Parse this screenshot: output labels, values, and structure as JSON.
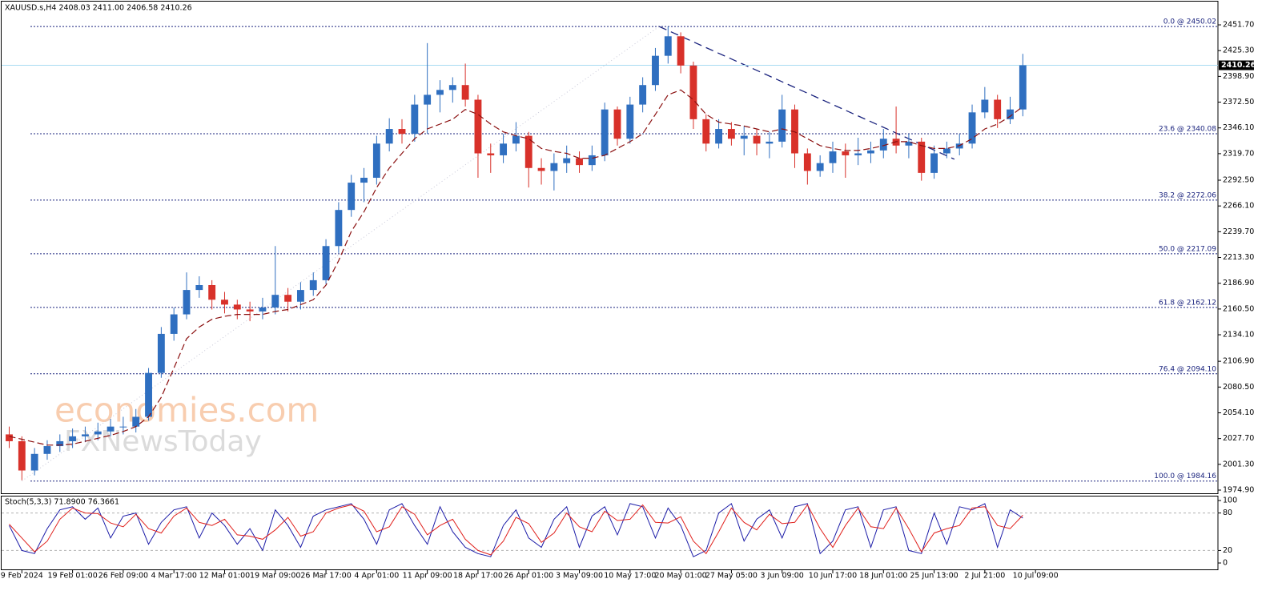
{
  "header": "XAUUSD.s,H4  2408.03 2411.00 2406.58 2410.26",
  "watermark": {
    "brand": "economies.com",
    "sub": "FXNewsToday"
  },
  "chart_data": [
    {
      "type": "candlestick",
      "xlim": [
        -0.6,
        95.4
      ],
      "xticks": [
        {
          "value": 1,
          "label": "9 Feb 2024"
        },
        {
          "value": 5,
          "label": "19 Feb 01:00"
        },
        {
          "value": 9,
          "label": "26 Feb 09:00"
        },
        {
          "value": 13,
          "label": "4 Mar 17:00"
        },
        {
          "value": 17,
          "label": "12 Mar 01:00"
        },
        {
          "value": 21,
          "label": "19 Mar 09:00"
        },
        {
          "value": 25,
          "label": "26 Mar 17:00"
        },
        {
          "value": 29,
          "label": "4 Apr 01:00"
        },
        {
          "value": 33,
          "label": "11 Apr 09:00"
        },
        {
          "value": 37,
          "label": "18 Apr 17:00"
        },
        {
          "value": 41,
          "label": "26 Apr 01:00"
        },
        {
          "value": 45,
          "label": "3 May 09:00"
        },
        {
          "value": 49,
          "label": "10 May 17:00"
        },
        {
          "value": 53,
          "label": "20 May 01:00"
        },
        {
          "value": 57,
          "label": "27 May 05:00"
        },
        {
          "value": 61,
          "label": "3 Jun 09:00"
        },
        {
          "value": 65,
          "label": "10 Jun 17:00"
        },
        {
          "value": 69,
          "label": "18 Jun 01:00"
        },
        {
          "value": 73,
          "label": "25 Jun 13:00"
        },
        {
          "value": 77,
          "label": "2 Jul 21:00"
        },
        {
          "value": 81,
          "label": "10 Jul 09:00"
        }
      ],
      "ylim": [
        1970.8,
        2462.4
      ],
      "yticks": [
        {
          "value": 2451.7,
          "label": "2451.70"
        },
        {
          "value": 2425.3,
          "label": "2425.30"
        },
        {
          "value": 2398.9,
          "label": "2398.90"
        },
        {
          "value": 2372.5,
          "label": "2372.50"
        },
        {
          "value": 2346.1,
          "label": "2346.10"
        },
        {
          "value": 2319.7,
          "label": "2319.70"
        },
        {
          "value": 2292.5,
          "label": "2292.50"
        },
        {
          "value": 2266.1,
          "label": "2266.10"
        },
        {
          "value": 2239.7,
          "label": "2239.70"
        },
        {
          "value": 2213.3,
          "label": "2213.30"
        },
        {
          "value": 2186.9,
          "label": "2186.90"
        },
        {
          "value": 2160.5,
          "label": "2160.50"
        },
        {
          "value": 2134.1,
          "label": "2134.10"
        },
        {
          "value": 2106.9,
          "label": "2106.90"
        },
        {
          "value": 2080.5,
          "label": "2080.50"
        },
        {
          "value": 2054.1,
          "label": "2054.10"
        },
        {
          "value": 2027.7,
          "label": "2027.70"
        },
        {
          "value": 2001.3,
          "label": "2001.30"
        },
        {
          "value": 1974.9,
          "label": "1974.90"
        }
      ],
      "open": [
        2032,
        2025,
        1995,
        2012,
        2020,
        2025,
        2030,
        2032,
        2035,
        2040,
        2040,
        2050,
        2095,
        2135,
        2155,
        2180,
        2185,
        2170,
        2165,
        2160,
        2158,
        2162,
        2175,
        2168,
        2180,
        2190,
        2225,
        2262,
        2290,
        2295,
        2330,
        2345,
        2340,
        2370,
        2380,
        2385,
        2390,
        2375,
        2320,
        2318,
        2330,
        2338,
        2305,
        2302,
        2310,
        2315,
        2308,
        2318,
        2365,
        2335,
        2370,
        2390,
        2420,
        2440,
        2410,
        2355,
        2330,
        2345,
        2335,
        2338,
        2330,
        2332,
        2365,
        2320,
        2302,
        2310,
        2322,
        2318,
        2320,
        2323,
        2335,
        2328,
        2332,
        2300,
        2320,
        2325,
        2330,
        2362,
        2375,
        2355,
        2365
      ],
      "high": [
        2040,
        2030,
        2018,
        2026,
        2032,
        2038,
        2040,
        2044,
        2048,
        2050,
        2058,
        2100,
        2142,
        2162,
        2198,
        2194,
        2190,
        2178,
        2170,
        2168,
        2172,
        2225,
        2182,
        2188,
        2198,
        2232,
        2270,
        2298,
        2305,
        2338,
        2356,
        2355,
        2380,
        2433,
        2395,
        2398,
        2412,
        2380,
        2330,
        2340,
        2352,
        2342,
        2315,
        2320,
        2328,
        2322,
        2328,
        2372,
        2368,
        2378,
        2398,
        2428,
        2450,
        2444,
        2414,
        2360,
        2355,
        2352,
        2348,
        2345,
        2342,
        2380,
        2370,
        2325,
        2318,
        2332,
        2330,
        2336,
        2332,
        2345,
        2368,
        2340,
        2336,
        2328,
        2332,
        2340,
        2370,
        2388,
        2380,
        2378,
        2422
      ],
      "low": [
        2018,
        1985,
        1990,
        2006,
        2014,
        2018,
        2024,
        2026,
        2030,
        2032,
        2034,
        2046,
        2090,
        2128,
        2150,
        2172,
        2160,
        2156,
        2150,
        2148,
        2150,
        2155,
        2158,
        2160,
        2174,
        2186,
        2218,
        2255,
        2270,
        2288,
        2322,
        2330,
        2332,
        2340,
        2362,
        2372,
        2368,
        2295,
        2300,
        2310,
        2322,
        2285,
        2288,
        2282,
        2300,
        2300,
        2302,
        2312,
        2328,
        2330,
        2362,
        2384,
        2412,
        2402,
        2345,
        2322,
        2325,
        2328,
        2318,
        2318,
        2315,
        2326,
        2305,
        2288,
        2296,
        2300,
        2295,
        2308,
        2310,
        2315,
        2320,
        2315,
        2292,
        2294,
        2315,
        2318,
        2325,
        2356,
        2346,
        2350,
        2358
      ],
      "close": [
        2025,
        1995,
        2012,
        2020,
        2025,
        2030,
        2032,
        2035,
        2040,
        2040,
        2050,
        2095,
        2135,
        2155,
        2180,
        2185,
        2170,
        2165,
        2160,
        2158,
        2162,
        2175,
        2168,
        2180,
        2190,
        2225,
        2262,
        2290,
        2295,
        2330,
        2345,
        2340,
        2370,
        2380,
        2385,
        2390,
        2375,
        2320,
        2318,
        2330,
        2338,
        2305,
        2302,
        2310,
        2315,
        2308,
        2318,
        2365,
        2335,
        2370,
        2390,
        2420,
        2440,
        2410,
        2355,
        2330,
        2345,
        2335,
        2338,
        2330,
        2332,
        2365,
        2320,
        2302,
        2310,
        2322,
        2318,
        2320,
        2323,
        2335,
        2328,
        2332,
        2300,
        2320,
        2325,
        2330,
        2362,
        2375,
        2355,
        2365,
        2410.26
      ],
      "up_color": "#2f6fc0",
      "down_color": "#d8312a",
      "ma": {
        "color": "#8b1010",
        "values": [
          2030,
          2027,
          2024,
          2021,
          2021,
          2022,
          2025,
          2028,
          2031,
          2035,
          2040,
          2050,
          2070,
          2100,
          2130,
          2142,
          2150,
          2153,
          2155,
          2155,
          2155,
          2158,
          2160,
          2165,
          2170,
          2185,
          2210,
          2240,
          2260,
          2285,
          2305,
          2320,
          2335,
          2345,
          2350,
          2355,
          2365,
          2360,
          2350,
          2342,
          2338,
          2335,
          2325,
          2322,
          2320,
          2315,
          2315,
          2318,
          2325,
          2332,
          2340,
          2360,
          2380,
          2385,
          2375,
          2360,
          2352,
          2350,
          2348,
          2345,
          2342,
          2345,
          2342,
          2335,
          2328,
          2325,
          2323,
          2323,
          2325,
          2328,
          2332,
          2332,
          2328,
          2325,
          2325,
          2328,
          2335,
          2345,
          2350,
          2358,
          2368
        ]
      },
      "trendline": {
        "color": "#1a237e",
        "x": [
          51.3,
          74.6
        ],
        "y": [
          2450,
          2314
        ]
      },
      "fib_anchor": {
        "color": "#c8c8d8",
        "x": [
          1,
          51.3
        ],
        "y": [
          1984.16,
          2450.02
        ]
      },
      "fib_color": "#1a237e",
      "fib_levels": [
        {
          "value": 2450.02,
          "label": "0.0 @ 2450.02"
        },
        {
          "value": 2340.08,
          "label": "23.6 @ 2340.08"
        },
        {
          "value": 2272.06,
          "label": "38.2 @ 2272.06"
        },
        {
          "value": 2217.09,
          "label": "50.0 @ 2217.09"
        },
        {
          "value": 2162.12,
          "label": "61.8 @ 2162.12"
        },
        {
          "value": 2094.1,
          "label": "76.4 @ 2094.10"
        },
        {
          "value": 1984.16,
          "label": "100.0 @ 1984.16"
        }
      ],
      "price_line_color": "#a9dcf2"
    },
    {
      "type": "line",
      "title": "Stoch(5,3,3) 71.8900 76.3661",
      "xlim": [
        -0.6,
        95.4
      ],
      "ylim": [
        -11.5,
        106.4
      ],
      "yticks": [
        0,
        20,
        80,
        100
      ],
      "levels": [
        20,
        80
      ],
      "series": [
        {
          "color": "#1c1ca8",
          "values": [
            60,
            20,
            15,
            55,
            85,
            90,
            70,
            88,
            40,
            75,
            80,
            30,
            65,
            85,
            90,
            40,
            80,
            60,
            30,
            55,
            20,
            85,
            60,
            25,
            75,
            85,
            90,
            95,
            70,
            30,
            85,
            95,
            60,
            30,
            90,
            50,
            25,
            15,
            10,
            60,
            85,
            40,
            25,
            70,
            90,
            25,
            75,
            90,
            45,
            95,
            90,
            40,
            88,
            60,
            10,
            20,
            80,
            95,
            35,
            70,
            85,
            40,
            90,
            95,
            15,
            35,
            85,
            90,
            25,
            85,
            90,
            20,
            15,
            80,
            30,
            90,
            85,
            95,
            25,
            85,
            71.89
          ]
        },
        {
          "color": "#e0201c",
          "values": [
            62,
            40,
            18,
            35,
            70,
            88,
            80,
            79,
            64,
            58,
            78,
            55,
            48,
            75,
            88,
            65,
            60,
            70,
            45,
            43,
            38,
            53,
            73,
            43,
            50,
            80,
            88,
            93,
            83,
            50,
            58,
            90,
            78,
            45,
            60,
            70,
            38,
            20,
            13,
            35,
            73,
            63,
            33,
            48,
            80,
            58,
            50,
            83,
            68,
            70,
            93,
            65,
            64,
            74,
            35,
            15,
            50,
            88,
            65,
            53,
            78,
            63,
            65,
            93,
            55,
            25,
            60,
            88,
            58,
            55,
            88,
            55,
            18,
            48,
            55,
            60,
            88,
            90,
            60,
            55,
            76.3661
          ]
        }
      ]
    }
  ]
}
